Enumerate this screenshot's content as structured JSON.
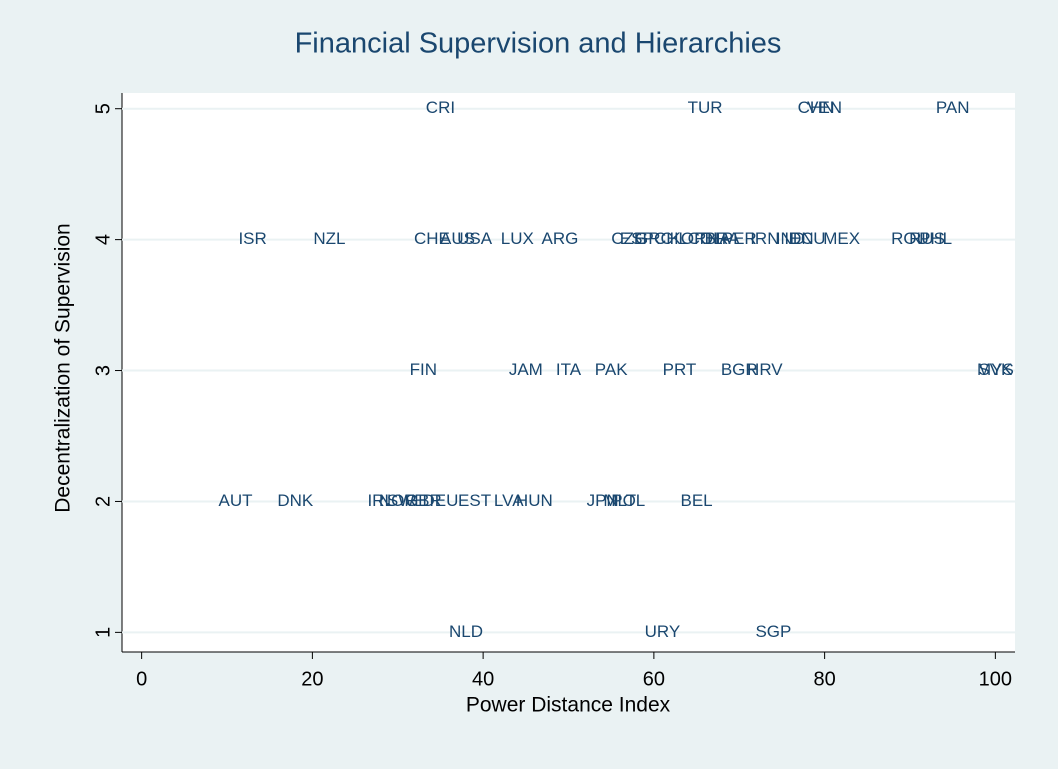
{
  "chart_data": {
    "type": "scatter",
    "title": "Financial Supervision and Hierarchies",
    "x_label": "Power Distance Index",
    "y_label": "Decentralization of Supervision",
    "color": "#1a476f",
    "grid": true,
    "xlim": [
      -2.3,
      102.3
    ],
    "ylim": [
      0.85,
      5.12
    ],
    "xticks": [
      0,
      20,
      40,
      60,
      80,
      100
    ],
    "yticks": [
      1,
      2,
      3,
      4,
      5
    ],
    "labels": [
      "CRI",
      "TUR",
      "CHN",
      "VEN",
      "PAN",
      "ISR",
      "NZL",
      "CHE",
      "AUS",
      "USA",
      "LUX",
      "ARG",
      "CZE",
      "ESP",
      "GRC",
      "CHL",
      "KOR",
      "COL",
      "THA",
      "BRA",
      "PER",
      "IRN",
      "IND",
      "IDN",
      "ECU",
      "MEX",
      "ROU",
      "RUS",
      "PHL",
      "FIN",
      "JAM",
      "ITA",
      "PAK",
      "PRT",
      "BGR",
      "HRV",
      "SVK",
      "MYS",
      "AUT",
      "DNK",
      "IRL",
      "NOR",
      "SWE",
      "GBR",
      "DEU",
      "EST",
      "LVA",
      "HUN",
      "JPN",
      "MLT",
      "POL",
      "BEL",
      "NLD",
      "URY",
      "SGP"
    ],
    "x": [
      35,
      66,
      79,
      80,
      95,
      13,
      22,
      34,
      37,
      39,
      44,
      49,
      57,
      58,
      60,
      62,
      64,
      66,
      67,
      68,
      70,
      73,
      76,
      77,
      78,
      82,
      90,
      92,
      93,
      33,
      45,
      50,
      55,
      63,
      70,
      73,
      100,
      100,
      11,
      18,
      28,
      30,
      31,
      33,
      35,
      39,
      43,
      46,
      54,
      56,
      57,
      65,
      38,
      61,
      74
    ],
    "y": [
      5,
      5,
      5,
      5,
      5,
      4,
      4,
      4,
      4,
      4,
      4,
      4,
      4,
      4,
      4,
      4,
      4,
      4,
      4,
      4,
      4,
      4,
      4,
      4,
      4,
      4,
      4,
      4,
      4,
      3,
      3,
      3,
      3,
      3,
      3,
      3,
      3,
      3,
      2,
      2,
      2,
      2,
      2,
      2,
      2,
      2,
      2,
      2,
      2,
      2,
      2,
      2,
      1,
      1,
      1
    ]
  }
}
